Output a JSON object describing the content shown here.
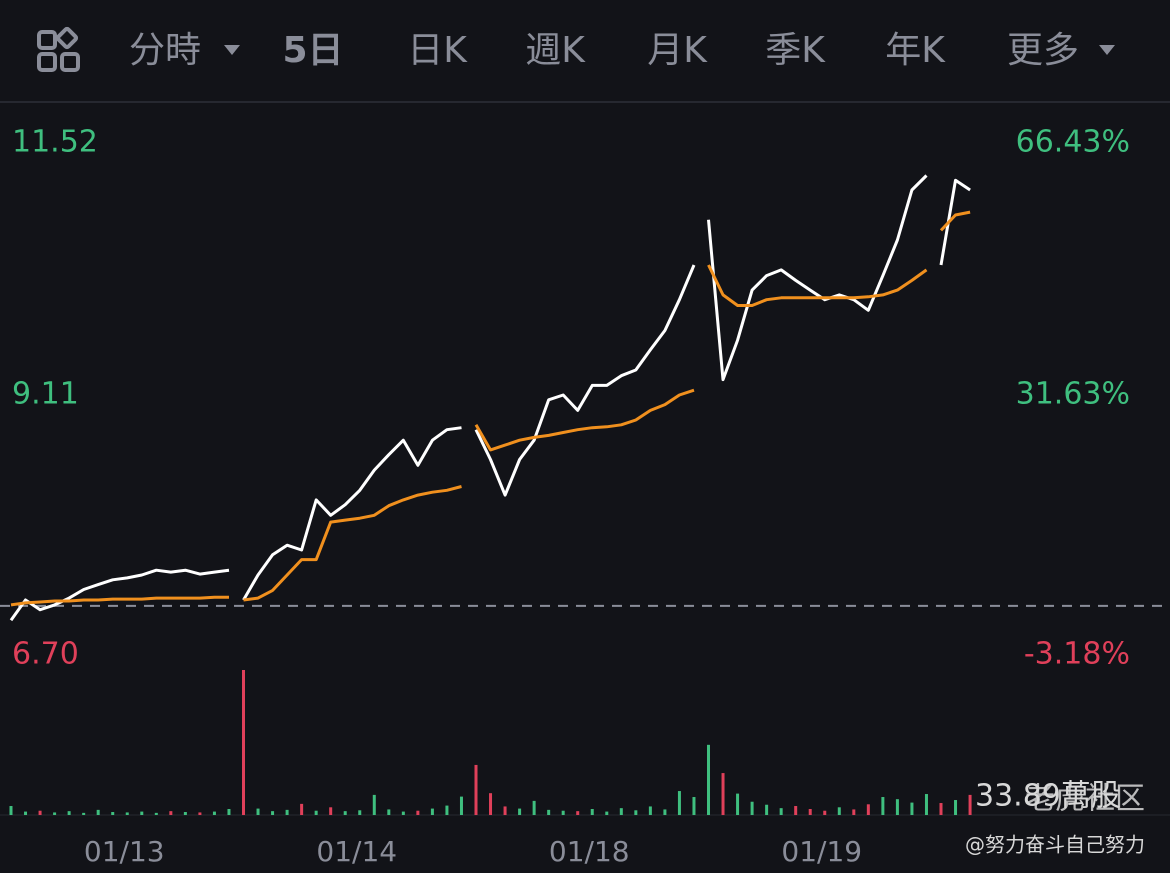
{
  "tabs": [
    "分時",
    "5日",
    "日K",
    "週K",
    "月K",
    "季K",
    "年K",
    "更多"
  ],
  "active_tab": 1,
  "chart_data": {
    "type": "line",
    "categories": [
      "01/13",
      "01/14",
      "01/18",
      "01/19",
      null
    ],
    "ylim": [
      6.7,
      11.52
    ],
    "yticks": [
      {
        "value": 6.7,
        "label": "6.70"
      },
      9.11,
      11.52
    ],
    "y2lim": [
      -3.18,
      66.43
    ],
    "y2ticks": [
      {
        "value": -3.18,
        "label": "-3.18%"
      },
      {
        "value": 31.63,
        "label": "31.63%"
      },
      {
        "value": 66.43,
        "label": "66.43%"
      }
    ],
    "up_color": "#3fbf7f",
    "down_color": "#e0405a",
    "series": [
      {
        "color": "#ffffff",
        "values": [
          [
            6.77,
            6.98,
            6.88,
            6.93,
            7.0,
            7.09,
            7.14,
            7.19,
            7.21,
            7.24,
            7.29,
            7.27,
            7.29,
            7.25,
            7.27,
            7.29
          ],
          [
            6.98,
            7.24,
            7.45,
            7.55,
            7.5,
            8.02,
            7.86,
            7.97,
            8.12,
            8.33,
            8.49,
            8.64,
            8.38,
            8.64,
            8.75,
            8.77
          ],
          [
            8.75,
            8.44,
            8.07,
            8.44,
            8.64,
            9.06,
            9.11,
            8.95,
            9.21,
            9.21,
            9.31,
            9.37,
            9.58,
            9.78,
            10.1,
            10.46
          ],
          [
            10.93,
            9.27,
            9.68,
            10.2,
            10.35,
            10.41,
            10.3,
            10.2,
            10.1,
            10.15,
            10.1,
            9.99,
            10.35,
            10.72,
            11.24,
            11.39
          ],
          [
            10.46,
            11.34,
            11.24
          ]
        ]
      },
      {
        "color": "#f0901e",
        "values": [
          [
            6.93,
            6.95,
            6.96,
            6.97,
            6.97,
            6.98,
            6.98,
            6.99,
            6.99,
            6.99,
            7.0,
            7.0,
            7.0,
            7.0,
            7.01,
            7.01
          ],
          [
            6.98,
            7.0,
            7.08,
            7.24,
            7.4,
            7.4,
            7.79,
            7.81,
            7.83,
            7.86,
            7.96,
            8.02,
            8.07,
            8.1,
            8.12,
            8.16
          ],
          [
            8.8,
            8.54,
            8.59,
            8.64,
            8.67,
            8.69,
            8.72,
            8.75,
            8.77,
            8.78,
            8.8,
            8.85,
            8.95,
            9.01,
            9.11,
            9.16
          ],
          [
            10.46,
            10.15,
            10.04,
            10.04,
            10.1,
            10.12,
            10.12,
            10.12,
            10.12,
            10.12,
            10.12,
            10.13,
            10.15,
            10.2,
            10.3,
            10.41
          ],
          [
            10.82,
            10.98,
            11.01
          ]
        ]
      }
    ],
    "volume": {
      "vlim": [
        0,
        33.89
      ],
      "vticks": [
        {
          "value": 33.89,
          "label": "33.89萬股"
        }
      ],
      "values": [
        [
          2.1,
          0.8,
          1.0,
          0.6,
          0.9,
          0.5,
          1.2,
          0.7,
          0.6,
          0.8,
          0.5,
          0.9,
          0.7,
          0.6,
          0.8,
          1.4
        ],
        [
          33.89,
          1.5,
          0.9,
          1.2,
          2.6,
          1.0,
          1.8,
          0.9,
          1.1,
          4.7,
          1.3,
          0.8,
          1.0,
          1.5,
          2.2,
          4.3
        ],
        [
          11.7,
          5.1,
          2.0,
          1.5,
          3.3,
          1.2,
          1.0,
          0.9,
          1.4,
          0.8,
          1.6,
          1.1,
          2.0,
          1.3,
          5.6,
          4.2
        ],
        [
          16.4,
          9.8,
          5.0,
          3.1,
          2.4,
          1.6,
          2.1,
          1.4,
          1.0,
          1.8,
          1.3,
          2.5,
          4.2,
          3.7,
          2.9,
          4.9
        ],
        [
          2.8,
          3.5,
          4.7
        ]
      ]
    }
  },
  "watermark": "老虎社区",
  "author": "@努力奋斗自己努力"
}
